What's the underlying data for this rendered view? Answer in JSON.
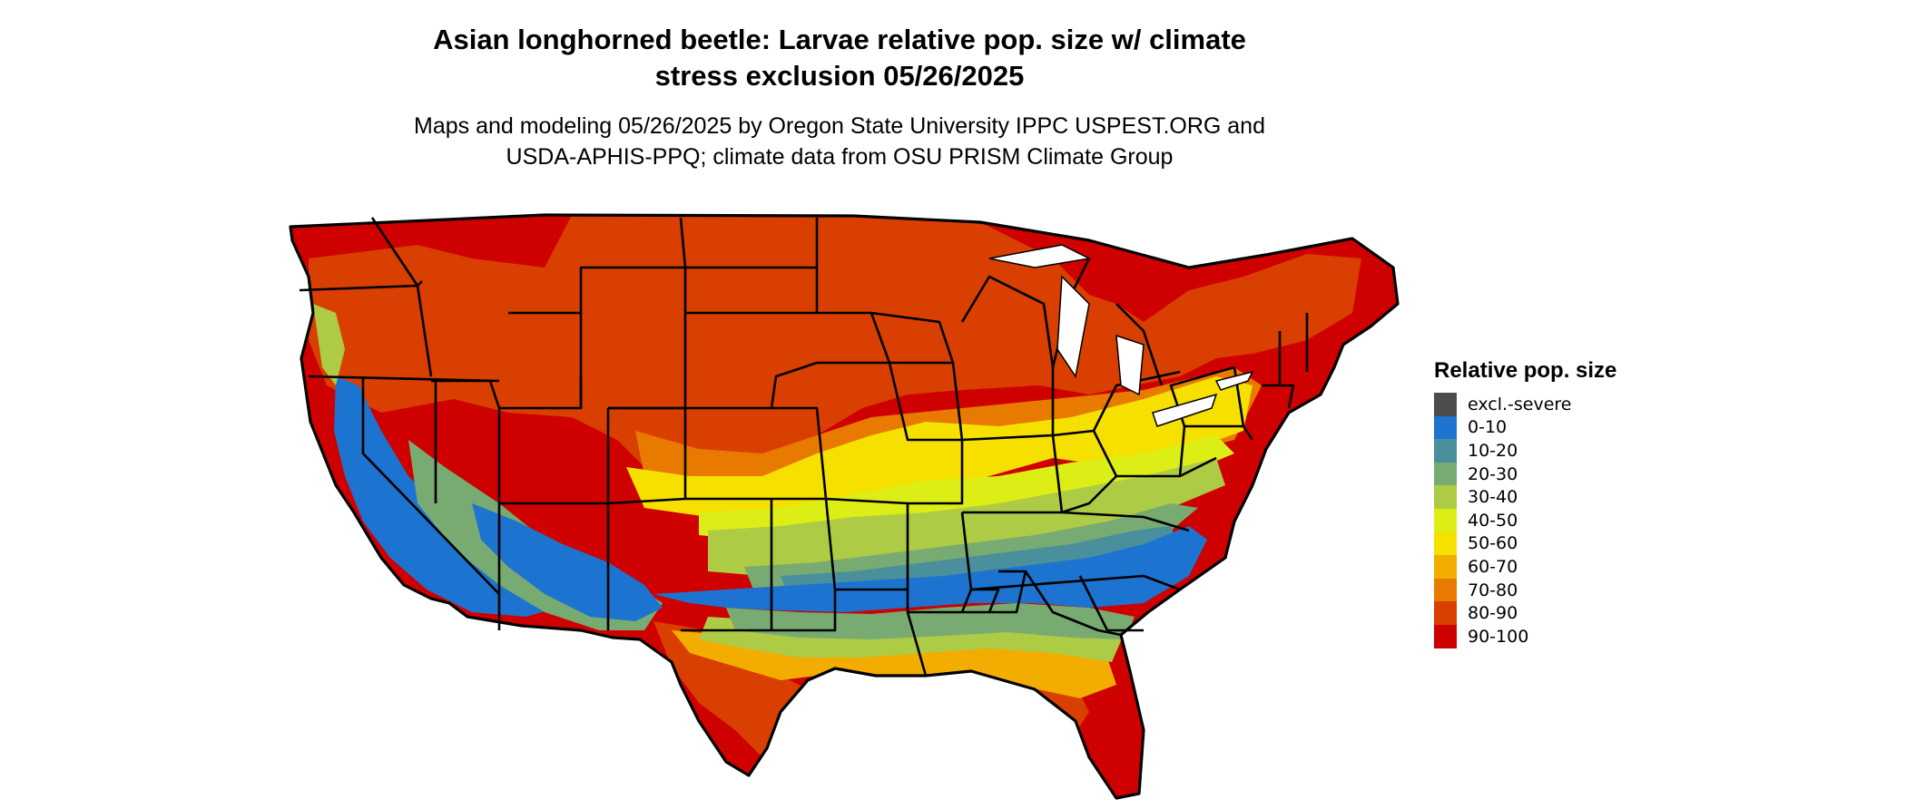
{
  "title_lines": [
    "Asian longhorned beetle: Larvae relative pop. size w/ climate",
    "stress exclusion 05/26/2025"
  ],
  "subtitle_lines": [
    "Maps and modeling 05/26/2025 by Oregon State University IPPC USPEST.ORG and",
    "USDA-APHIS-PPQ; climate data from OSU PRISM Climate Group"
  ],
  "legend": {
    "title": "Relative pop. size",
    "items": [
      {
        "label": "excl.-severe",
        "color": "#4d4d4d"
      },
      {
        "label": "0-10",
        "color": "#1c73d0"
      },
      {
        "label": "10-20",
        "color": "#4a8f9c"
      },
      {
        "label": "20-30",
        "color": "#77ab72"
      },
      {
        "label": "30-40",
        "color": "#aecb45"
      },
      {
        "label": "40-50",
        "color": "#dcee16"
      },
      {
        "label": "50-60",
        "color": "#f6e000"
      },
      {
        "label": "60-70",
        "color": "#f2ad00"
      },
      {
        "label": "70-80",
        "color": "#e87a00"
      },
      {
        "label": "80-90",
        "color": "#d93f00"
      },
      {
        "label": "90-100",
        "color": "#cf0000"
      }
    ]
  }
}
